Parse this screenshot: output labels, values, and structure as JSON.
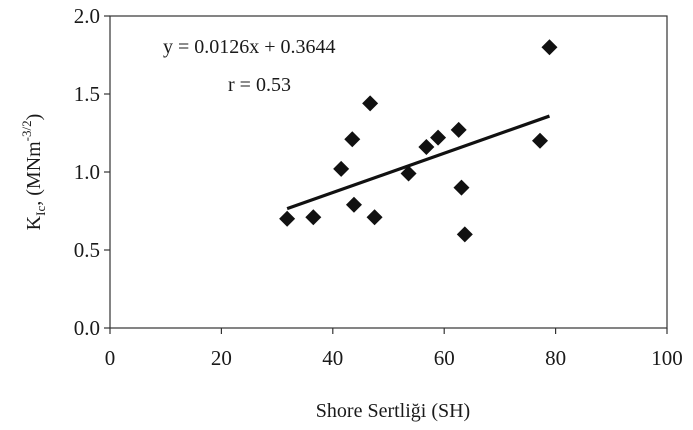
{
  "chart_data": {
    "type": "scatter",
    "xlabel": "Shore Sertliği (SH)",
    "ylabel": {
      "base": "K",
      "subscript": "Ic",
      "suffix": ", (MNm",
      "superscript": "-3/2",
      "close": ")"
    },
    "xlim": [
      0,
      100
    ],
    "ylim": [
      0.0,
      2.0
    ],
    "x_ticks": [
      "0",
      "20",
      "40",
      "60",
      "80",
      "100"
    ],
    "y_ticks": [
      "0.0",
      "0.5",
      "1.0",
      "1.5",
      "2.0"
    ],
    "grid": false,
    "marker": "diamond",
    "colors": {
      "marker": "#111111",
      "line": "#111111",
      "axis": "#333333"
    },
    "points": [
      {
        "x": 31.8,
        "y": 0.7
      },
      {
        "x": 36.5,
        "y": 0.71
      },
      {
        "x": 41.5,
        "y": 1.02
      },
      {
        "x": 43.5,
        "y": 1.21
      },
      {
        "x": 43.8,
        "y": 0.79
      },
      {
        "x": 46.7,
        "y": 1.44
      },
      {
        "x": 47.5,
        "y": 0.71
      },
      {
        "x": 53.6,
        "y": 0.99
      },
      {
        "x": 56.8,
        "y": 1.16
      },
      {
        "x": 58.9,
        "y": 1.22
      },
      {
        "x": 62.6,
        "y": 1.27
      },
      {
        "x": 63.1,
        "y": 0.9
      },
      {
        "x": 63.7,
        "y": 0.6
      },
      {
        "x": 77.2,
        "y": 1.2
      },
      {
        "x": 78.9,
        "y": 1.8
      }
    ],
    "trendline": {
      "slope": 0.0126,
      "intercept": 0.3644,
      "x_range": [
        31.8,
        78.9
      ]
    },
    "annotations": {
      "equation": "y = 0.0126x + 0.3644",
      "r": "r  = 0.53"
    }
  }
}
